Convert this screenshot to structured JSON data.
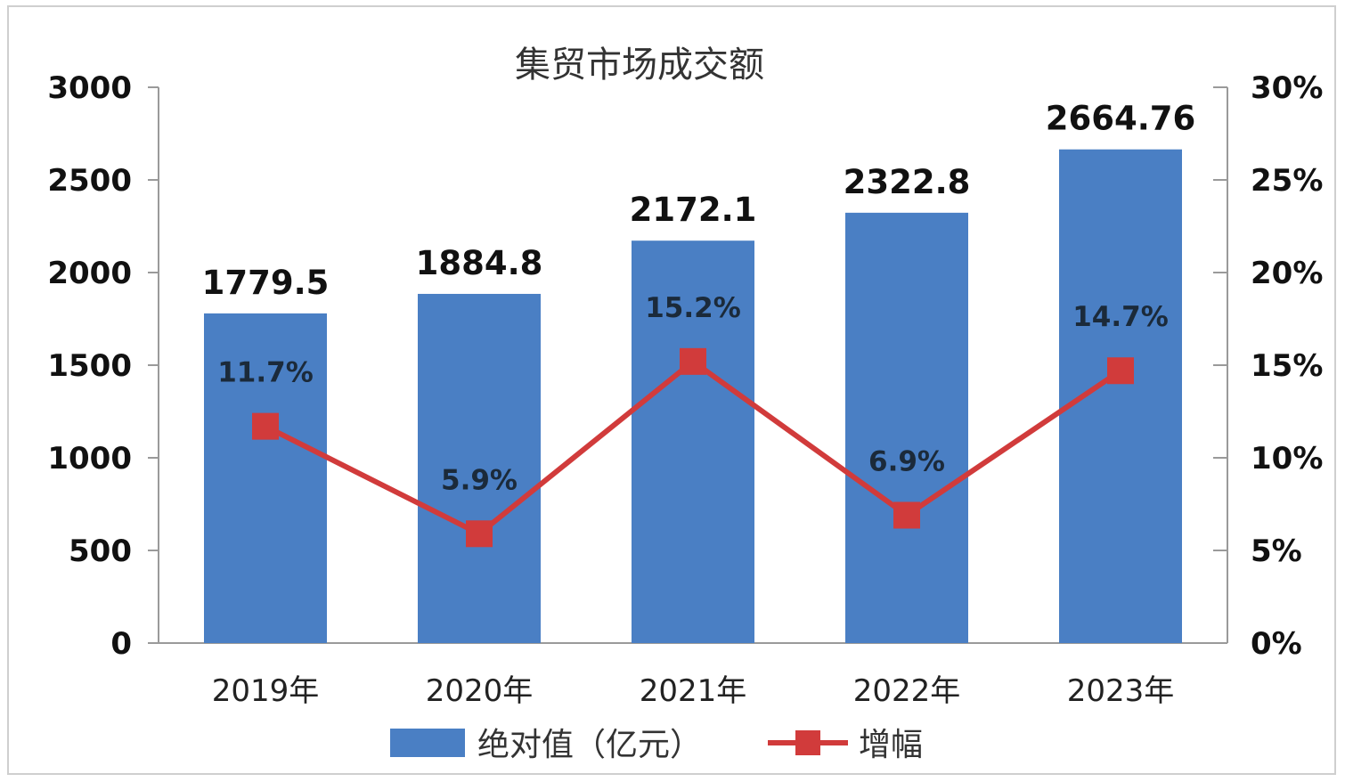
{
  "chart_data": {
    "type": "bar",
    "title": "集贸市场成交额",
    "categories": [
      "2019年",
      "2020年",
      "2021年",
      "2022年",
      "2023年"
    ],
    "series": [
      {
        "name": "绝对值（亿元）",
        "type": "bar",
        "axis": "left",
        "color": "#4a7fc4",
        "values": [
          1779.5,
          1884.8,
          2172.1,
          2322.8,
          2664.76
        ],
        "labels": [
          "1779.5",
          "1884.8",
          "2172.1",
          "2322.8",
          "2664.76"
        ]
      },
      {
        "name": "增幅",
        "type": "line",
        "axis": "right",
        "color": "#d13b3b",
        "marker": "square",
        "values": [
          11.7,
          5.9,
          15.2,
          6.9,
          14.7
        ],
        "labels": [
          "11.7%",
          "5.9%",
          "15.2%",
          "6.9%",
          "14.7%"
        ]
      }
    ],
    "ylim": [
      0,
      3000
    ],
    "y_ticks": [
      "0",
      "500",
      "1000",
      "1500",
      "2000",
      "2500",
      "3000"
    ],
    "y2lim": [
      0,
      30
    ],
    "y2_ticks": [
      "0%",
      "5%",
      "10%",
      "15%",
      "20%",
      "25%",
      "30%"
    ],
    "grid": false,
    "legend": "bottom"
  }
}
